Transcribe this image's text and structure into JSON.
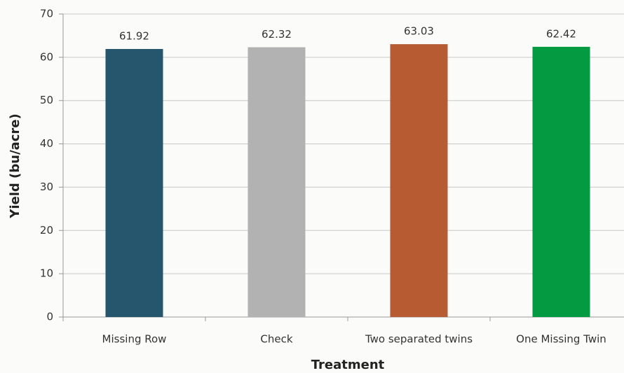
{
  "chart_data": {
    "type": "bar",
    "x_label": "Treatment",
    "y_label": "Yield (bu/acre)",
    "categories": [
      "Missing Row",
      "Check",
      "Two separated twins",
      "One Missing Twin"
    ],
    "values": [
      61.92,
      62.32,
      63.03,
      62.42
    ],
    "colors": [
      "#25566e",
      "#b2b2b2",
      "#b75b33",
      "#039a42"
    ],
    "ylim": [
      0,
      70
    ],
    "yticks": [
      0,
      10,
      20,
      30,
      40,
      50,
      60,
      70
    ],
    "grid": true
  }
}
